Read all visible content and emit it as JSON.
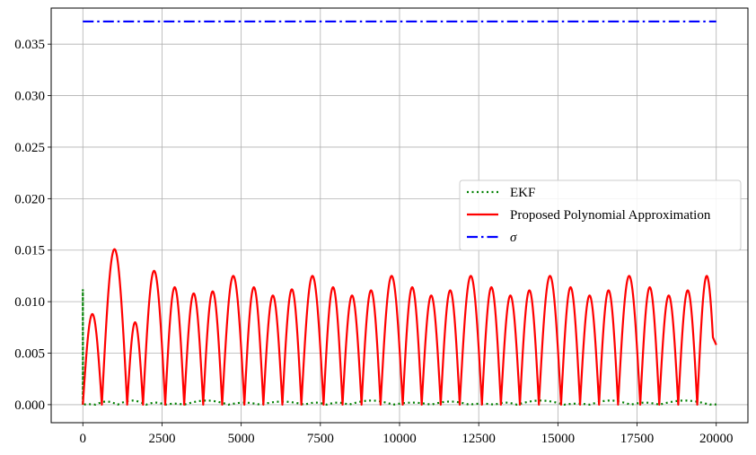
{
  "chart_data": {
    "type": "line",
    "title": "",
    "xlabel": "",
    "ylabel": "",
    "xlim": [
      -1000,
      21000
    ],
    "ylim": [
      -0.00175,
      0.0385
    ],
    "grid": true,
    "legend_position": "center-right",
    "x_ticks": [
      0,
      2500,
      5000,
      7500,
      10000,
      12500,
      15000,
      17500,
      20000
    ],
    "x_tick_labels": [
      "0",
      "2500",
      "5000",
      "7500",
      "10000",
      "12500",
      "15000",
      "17500",
      "20000"
    ],
    "y_ticks": [
      0,
      0.005,
      0.01,
      0.015,
      0.02,
      0.025,
      0.03,
      0.035
    ],
    "y_tick_labels": [
      "0.000",
      "0.005",
      "0.010",
      "0.015",
      "0.020",
      "0.025",
      "0.030",
      "0.035"
    ],
    "series": [
      {
        "name": "EKF",
        "color": "#008000",
        "style": "dotted",
        "initial_spike": 0.0112,
        "peaks": [
          {
            "start": 0,
            "end": 400,
            "peak": 4e-05
          },
          {
            "start": 400,
            "end": 1100,
            "peak": 0.0003
          },
          {
            "start": 1100,
            "end": 2000,
            "peak": 0.0004
          },
          {
            "start": 2000,
            "end": 2600,
            "peak": 0.0002
          },
          {
            "start": 2600,
            "end": 3200,
            "peak": 0.0001
          },
          {
            "start": 3200,
            "end": 4600,
            "peak": 0.0004
          },
          {
            "start": 4600,
            "end": 5600,
            "peak": 0.0002
          },
          {
            "start": 5600,
            "end": 7000,
            "peak": 0.0003
          },
          {
            "start": 7000,
            "end": 7700,
            "peak": 0.0002
          },
          {
            "start": 7700,
            "end": 8400,
            "peak": 0.0002
          },
          {
            "start": 8400,
            "end": 9800,
            "peak": 0.0004
          },
          {
            "start": 9800,
            "end": 11000,
            "peak": 0.0002
          },
          {
            "start": 11000,
            "end": 12200,
            "peak": 0.0003
          },
          {
            "start": 12200,
            "end": 13000,
            "peak": 0.0001
          },
          {
            "start": 13000,
            "end": 13700,
            "peak": 0.0002
          },
          {
            "start": 13700,
            "end": 15200,
            "peak": 0.0004
          },
          {
            "start": 15200,
            "end": 16000,
            "peak": 0.0001
          },
          {
            "start": 16000,
            "end": 17300,
            "peak": 0.0004
          },
          {
            "start": 17300,
            "end": 18200,
            "peak": 0.0002
          },
          {
            "start": 18200,
            "end": 19800,
            "peak": 0.0004
          },
          {
            "start": 19800,
            "end": 20000,
            "peak": 5e-05
          }
        ]
      },
      {
        "name": "Proposed Polynomial Approximation",
        "color": "#ff0000",
        "style": "solid",
        "end_value": 0.0058,
        "peaks": [
          {
            "start": 0,
            "end": 600,
            "peak": 0.0088
          },
          {
            "start": 600,
            "end": 1400,
            "peak": 0.0151
          },
          {
            "start": 1400,
            "end": 1900,
            "peak": 0.008
          },
          {
            "start": 1900,
            "end": 2600,
            "peak": 0.013
          },
          {
            "start": 2600,
            "end": 3200,
            "peak": 0.0114
          },
          {
            "start": 3200,
            "end": 3800,
            "peak": 0.0108
          },
          {
            "start": 3800,
            "end": 4400,
            "peak": 0.011
          },
          {
            "start": 4400,
            "end": 5100,
            "peak": 0.0125
          },
          {
            "start": 5100,
            "end": 5700,
            "peak": 0.0114
          },
          {
            "start": 5700,
            "end": 6300,
            "peak": 0.0106
          },
          {
            "start": 6300,
            "end": 6900,
            "peak": 0.0112
          },
          {
            "start": 6900,
            "end": 7600,
            "peak": 0.0125
          },
          {
            "start": 7600,
            "end": 8200,
            "peak": 0.0114
          },
          {
            "start": 8200,
            "end": 8800,
            "peak": 0.0106
          },
          {
            "start": 8800,
            "end": 9400,
            "peak": 0.0111
          },
          {
            "start": 9400,
            "end": 10100,
            "peak": 0.0125
          },
          {
            "start": 10100,
            "end": 10700,
            "peak": 0.0114
          },
          {
            "start": 10700,
            "end": 11300,
            "peak": 0.0106
          },
          {
            "start": 11300,
            "end": 11900,
            "peak": 0.0111
          },
          {
            "start": 11900,
            "end": 12600,
            "peak": 0.0125
          },
          {
            "start": 12600,
            "end": 13200,
            "peak": 0.0114
          },
          {
            "start": 13200,
            "end": 13800,
            "peak": 0.0106
          },
          {
            "start": 13800,
            "end": 14400,
            "peak": 0.0111
          },
          {
            "start": 14400,
            "end": 15100,
            "peak": 0.0125
          },
          {
            "start": 15100,
            "end": 15700,
            "peak": 0.0114
          },
          {
            "start": 15700,
            "end": 16300,
            "peak": 0.0106
          },
          {
            "start": 16300,
            "end": 16900,
            "peak": 0.0111
          },
          {
            "start": 16900,
            "end": 17600,
            "peak": 0.0125
          },
          {
            "start": 17600,
            "end": 18200,
            "peak": 0.0114
          },
          {
            "start": 18200,
            "end": 18800,
            "peak": 0.0106
          },
          {
            "start": 18800,
            "end": 19400,
            "peak": 0.0111
          },
          {
            "start": 19400,
            "end": 20000,
            "peak": 0.0125
          }
        ]
      },
      {
        "name": "σ",
        "color": "#0000ff",
        "style": "dashdot",
        "x": [
          0,
          20000
        ],
        "values": [
          0.0372,
          0.0372
        ]
      }
    ]
  }
}
